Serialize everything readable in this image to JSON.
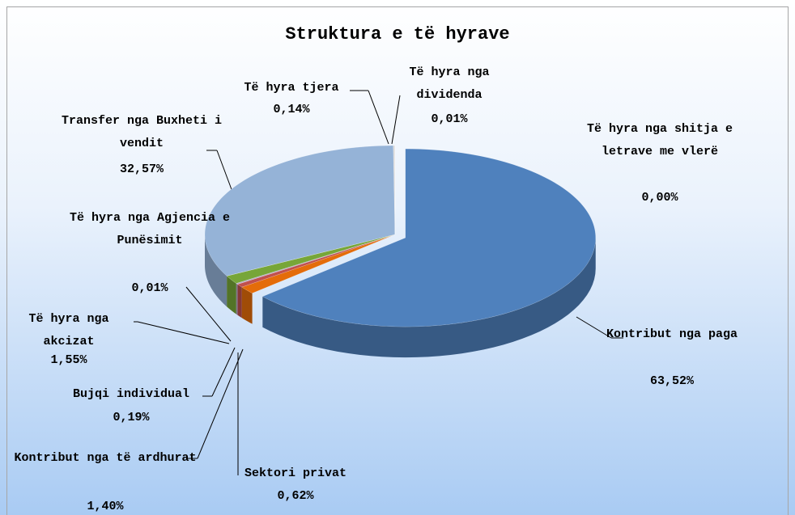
{
  "chart_data": {
    "type": "pie",
    "title": "Struktura e të hyrave",
    "categories": [
      "Kontribut nga paga",
      "Kontribut nga të ardhurat",
      "Sektori privat",
      "Bujqi individual",
      "Të hyra nga akcizat",
      "Të hyra nga Agjencia e Punësimit",
      "Transfer nga Buxheti i vendit",
      "Të hyra tjera",
      "Të hyra nga dividenda",
      "Të hyra nga shitja e letrave me vlerë"
    ],
    "values": [
      63.52,
      1.4,
      0.62,
      0.19,
      1.55,
      0.01,
      32.57,
      0.14,
      0.01,
      0.0
    ],
    "value_labels": [
      "63,52%",
      "1,40%",
      "0,62%",
      "0,19%",
      "1,55%",
      "0,01%",
      "32,57%",
      "0,14%",
      "0,01%",
      "0,00%"
    ],
    "colors": [
      "#4f81bd",
      "#e46c0a",
      "#c0504d",
      "#b7a7c9",
      "#77a638",
      "#8064a2",
      "#95b3d7",
      "#d9d9d9",
      "#f2dcdb",
      "#c6d9f1"
    ]
  }
}
